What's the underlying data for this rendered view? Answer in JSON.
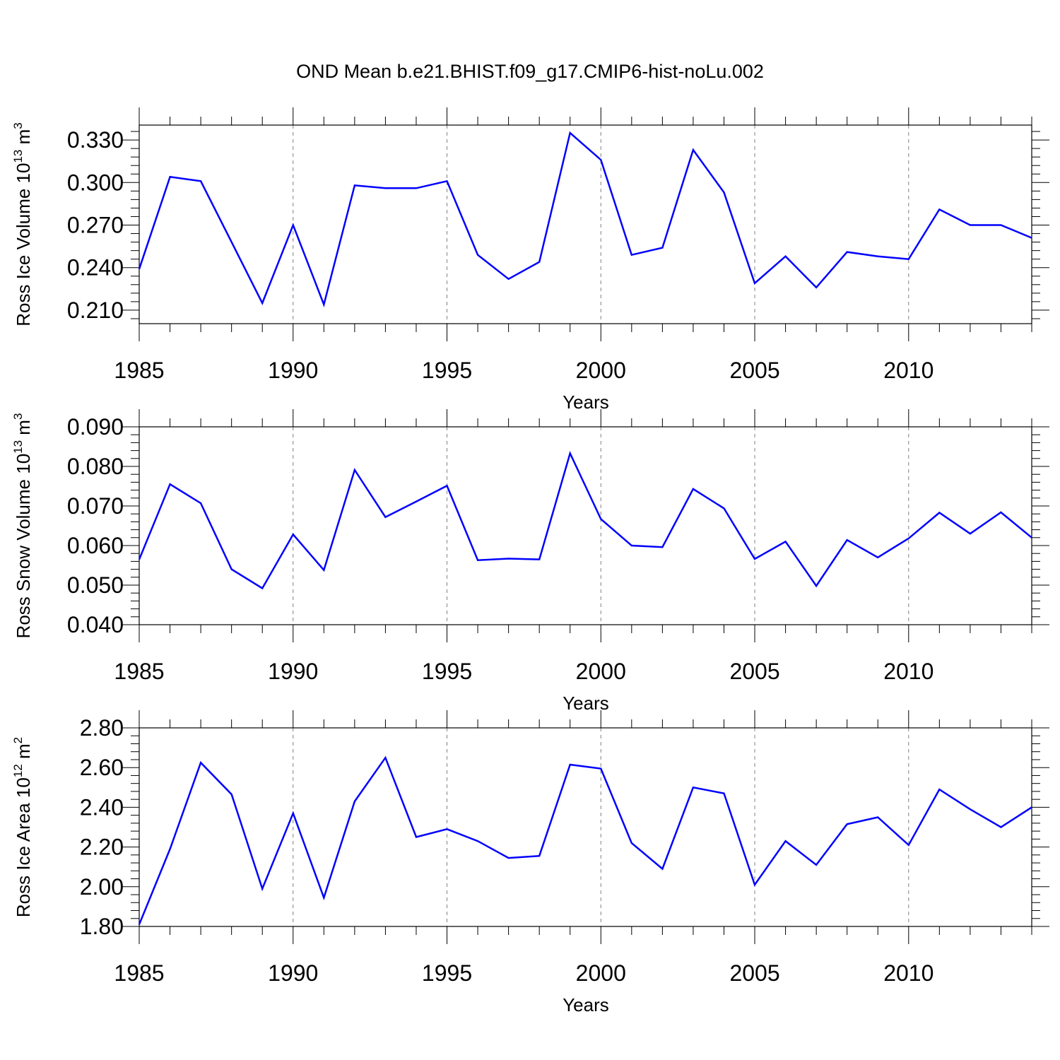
{
  "title": "OND Mean b.e21.BHIST.f09_g17.CMIP6-hist-noLu.002",
  "colors": {
    "series": "#0000ff",
    "axis": "#000000",
    "grid": "#808080"
  },
  "chart_data": [
    {
      "type": "line",
      "ylabel": {
        "text": "Ross Ice Volume 10",
        "sup": "13",
        "unit": " m",
        "unit_sup": "3"
      },
      "xlabel": "Years",
      "xlim": [
        1985,
        2014
      ],
      "ylim": [
        0.2005,
        0.3405
      ],
      "yticks": [
        0.21,
        0.24,
        0.27,
        0.3,
        0.33
      ],
      "ytick_labels": [
        "0.210",
        "0.240",
        "0.270",
        "0.300",
        "0.330"
      ],
      "yminor_step": 0.006,
      "xticks": [
        1985,
        1990,
        1995,
        2000,
        2005,
        2010
      ],
      "xtick_labels": [
        "1985",
        "1990",
        "1995",
        "2000",
        "2005",
        "2010"
      ],
      "x": [
        1985,
        1986,
        1987,
        1988,
        1989,
        1990,
        1991,
        1992,
        1993,
        1994,
        1995,
        1996,
        1997,
        1998,
        1999,
        2000,
        2001,
        2002,
        2003,
        2004,
        2005,
        2006,
        2007,
        2008,
        2009,
        2010,
        2011,
        2012,
        2013,
        2014
      ],
      "values": [
        0.239,
        0.304,
        0.301,
        0.258,
        0.215,
        0.27,
        0.214,
        0.298,
        0.296,
        0.296,
        0.301,
        0.249,
        0.232,
        0.244,
        0.335,
        0.316,
        0.249,
        0.254,
        0.323,
        0.293,
        0.229,
        0.248,
        0.226,
        0.251,
        0.248,
        0.246,
        0.281,
        0.27,
        0.27,
        0.261
      ]
    },
    {
      "type": "line",
      "ylabel": {
        "text": "Ross Snow Volume 10",
        "sup": "13",
        "unit": " m",
        "unit_sup": "3"
      },
      "xlabel": "Years",
      "xlim": [
        1985,
        2014
      ],
      "ylim": [
        0.04,
        0.09
      ],
      "yticks": [
        0.04,
        0.05,
        0.06,
        0.07,
        0.08,
        0.09
      ],
      "ytick_labels": [
        "0.040",
        "0.050",
        "0.060",
        "0.070",
        "0.080",
        "0.090"
      ],
      "yminor_step": 0.002,
      "xticks": [
        1985,
        1990,
        1995,
        2000,
        2005,
        2010
      ],
      "xtick_labels": [
        "1985",
        "1990",
        "1995",
        "2000",
        "2005",
        "2010"
      ],
      "x": [
        1985,
        1986,
        1987,
        1988,
        1989,
        1990,
        1991,
        1992,
        1993,
        1994,
        1995,
        1996,
        1997,
        1998,
        1999,
        2000,
        2001,
        2002,
        2003,
        2004,
        2005,
        2006,
        2007,
        2008,
        2009,
        2010,
        2011,
        2012,
        2013,
        2014
      ],
      "values": [
        0.0565,
        0.0755,
        0.0707,
        0.054,
        0.0492,
        0.0628,
        0.0538,
        0.0791,
        0.0672,
        0.0711,
        0.0751,
        0.0563,
        0.0567,
        0.0565,
        0.0833,
        0.0667,
        0.06,
        0.0596,
        0.0743,
        0.0694,
        0.0566,
        0.061,
        0.0498,
        0.0614,
        0.057,
        0.0618,
        0.0683,
        0.063,
        0.0684,
        0.062
      ]
    },
    {
      "type": "line",
      "ylabel": {
        "text": "Ross Ice Area 10",
        "sup": "12",
        "unit": " m",
        "unit_sup": "2"
      },
      "xlabel": "Years",
      "xlim": [
        1985,
        2014
      ],
      "ylim": [
        1.8,
        2.8
      ],
      "yticks": [
        1.8,
        2.0,
        2.2,
        2.4,
        2.6,
        2.8
      ],
      "ytick_labels": [
        "1.80",
        "2.00",
        "2.20",
        "2.40",
        "2.60",
        "2.80"
      ],
      "yminor_step": 0.04,
      "xticks": [
        1985,
        1990,
        1995,
        2000,
        2005,
        2010
      ],
      "xtick_labels": [
        "1985",
        "1990",
        "1995",
        "2000",
        "2005",
        "2010"
      ],
      "x": [
        1985,
        1986,
        1987,
        1988,
        1989,
        1990,
        1991,
        1992,
        1993,
        1994,
        1995,
        1996,
        1997,
        1998,
        1999,
        2000,
        2001,
        2002,
        2003,
        2004,
        2005,
        2006,
        2007,
        2008,
        2009,
        2010,
        2011,
        2012,
        2013,
        2014
      ],
      "values": [
        1.81,
        2.19,
        2.625,
        2.465,
        1.99,
        2.37,
        1.945,
        2.43,
        2.65,
        2.25,
        2.29,
        2.23,
        2.145,
        2.155,
        2.615,
        2.595,
        2.22,
        2.09,
        2.5,
        2.47,
        2.01,
        2.23,
        2.11,
        2.315,
        2.35,
        2.21,
        2.49,
        2.39,
        2.3,
        2.4
      ]
    }
  ]
}
